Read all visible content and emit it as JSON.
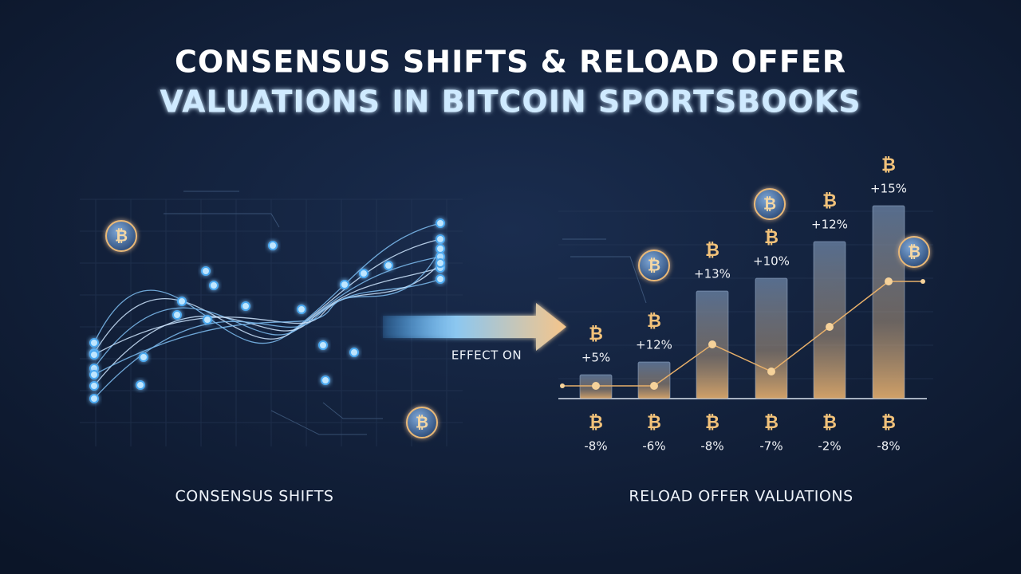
{
  "header": {
    "title_line1": "CONSENSUS SHIFTS & RELOAD OFFER",
    "title_line2": "VALUATIONS IN BITCOIN SPORTSBOOKS"
  },
  "symbol": "₿",
  "left_panel": {
    "label": "CONSENSUS SHIFTS"
  },
  "arrow": {
    "label": "EFFECT ON"
  },
  "right_panel": {
    "label": "RELOAD OFFER VALUATIONS",
    "columns": [
      {
        "upper": "+5%",
        "lower": "-8%"
      },
      {
        "upper": "+12%",
        "lower": "-6%"
      },
      {
        "upper": "+13%",
        "lower": "-8%"
      },
      {
        "upper": "+10%",
        "lower": "-7%"
      },
      {
        "upper": "+12%",
        "lower": "-2%"
      },
      {
        "upper": "+15%",
        "lower": "-8%"
      }
    ]
  }
}
